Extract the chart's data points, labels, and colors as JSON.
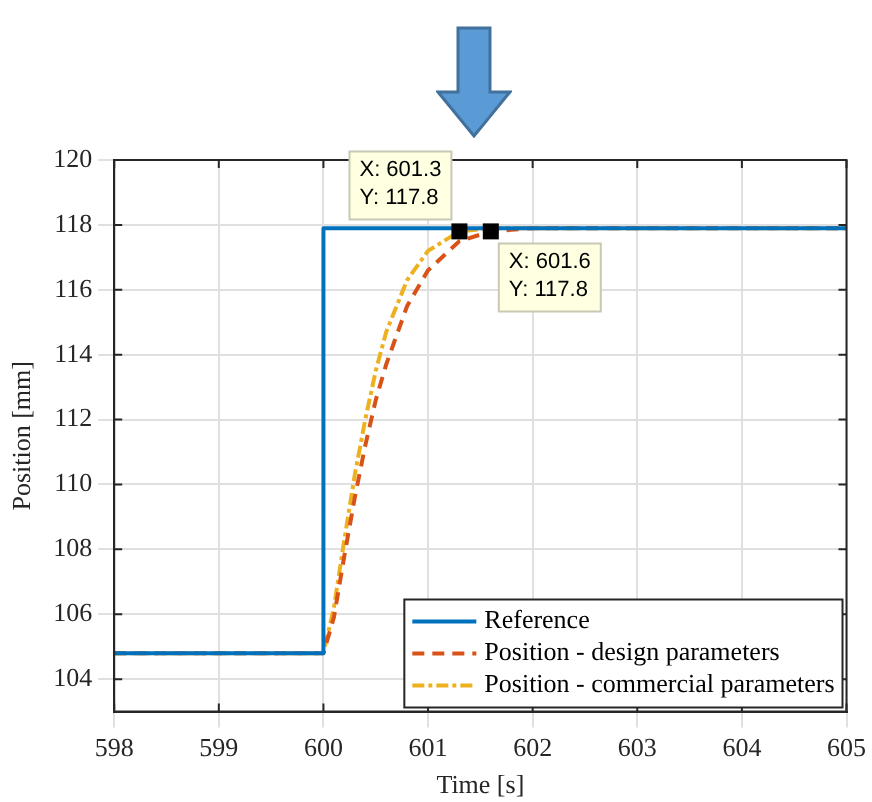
{
  "chart_data": {
    "type": "line",
    "xlabel": "Time [s]",
    "ylabel": "Position [mm]",
    "xlim": [
      598,
      605
    ],
    "xticks": [
      598,
      599,
      600,
      601,
      602,
      603,
      604,
      605
    ],
    "ylim": [
      103,
      120
    ],
    "yticks": [
      104,
      106,
      108,
      110,
      112,
      114,
      116,
      118,
      120
    ],
    "grid": true,
    "legend": "bottom right",
    "marker": "none",
    "series": [
      {
        "name": "Reference",
        "color": "#0072bd",
        "line_style": "solid",
        "x": [
          598,
          600,
          600,
          605
        ],
        "values": [
          104.8,
          104.8,
          117.9,
          117.9
        ]
      },
      {
        "name": "Position - design parameters",
        "color": "#d95319",
        "line_style": "dashed",
        "x": [
          598,
          600,
          600.1,
          600.2,
          600.3,
          600.4,
          600.5,
          600.6,
          600.8,
          601,
          601.3,
          601.6,
          602,
          605
        ],
        "values": [
          104.8,
          104.8,
          105.9,
          107.8,
          109.6,
          111.2,
          112.6,
          113.7,
          115.5,
          116.6,
          117.5,
          117.8,
          117.9,
          117.9
        ]
      },
      {
        "name": "Position - commercial parameters",
        "color": "#edb120",
        "line_style": "dotted",
        "x": [
          598,
          600,
          600.1,
          600.2,
          600.3,
          600.4,
          600.5,
          600.6,
          600.8,
          601,
          601.3,
          601.6,
          602,
          605
        ],
        "values": [
          104.8,
          104.8,
          106.2,
          108.3,
          110.3,
          112,
          113.5,
          114.7,
          116.3,
          117.2,
          117.8,
          117.9,
          117.9,
          117.9
        ]
      }
    ],
    "annotations": [
      {
        "text": "X: 601.3\nY: 117.8",
        "x": 601.3,
        "y": 117.8
      },
      {
        "text": "X: 601.6\nY: 117.8",
        "x": 601.6,
        "y": 117.8
      }
    ]
  }
}
